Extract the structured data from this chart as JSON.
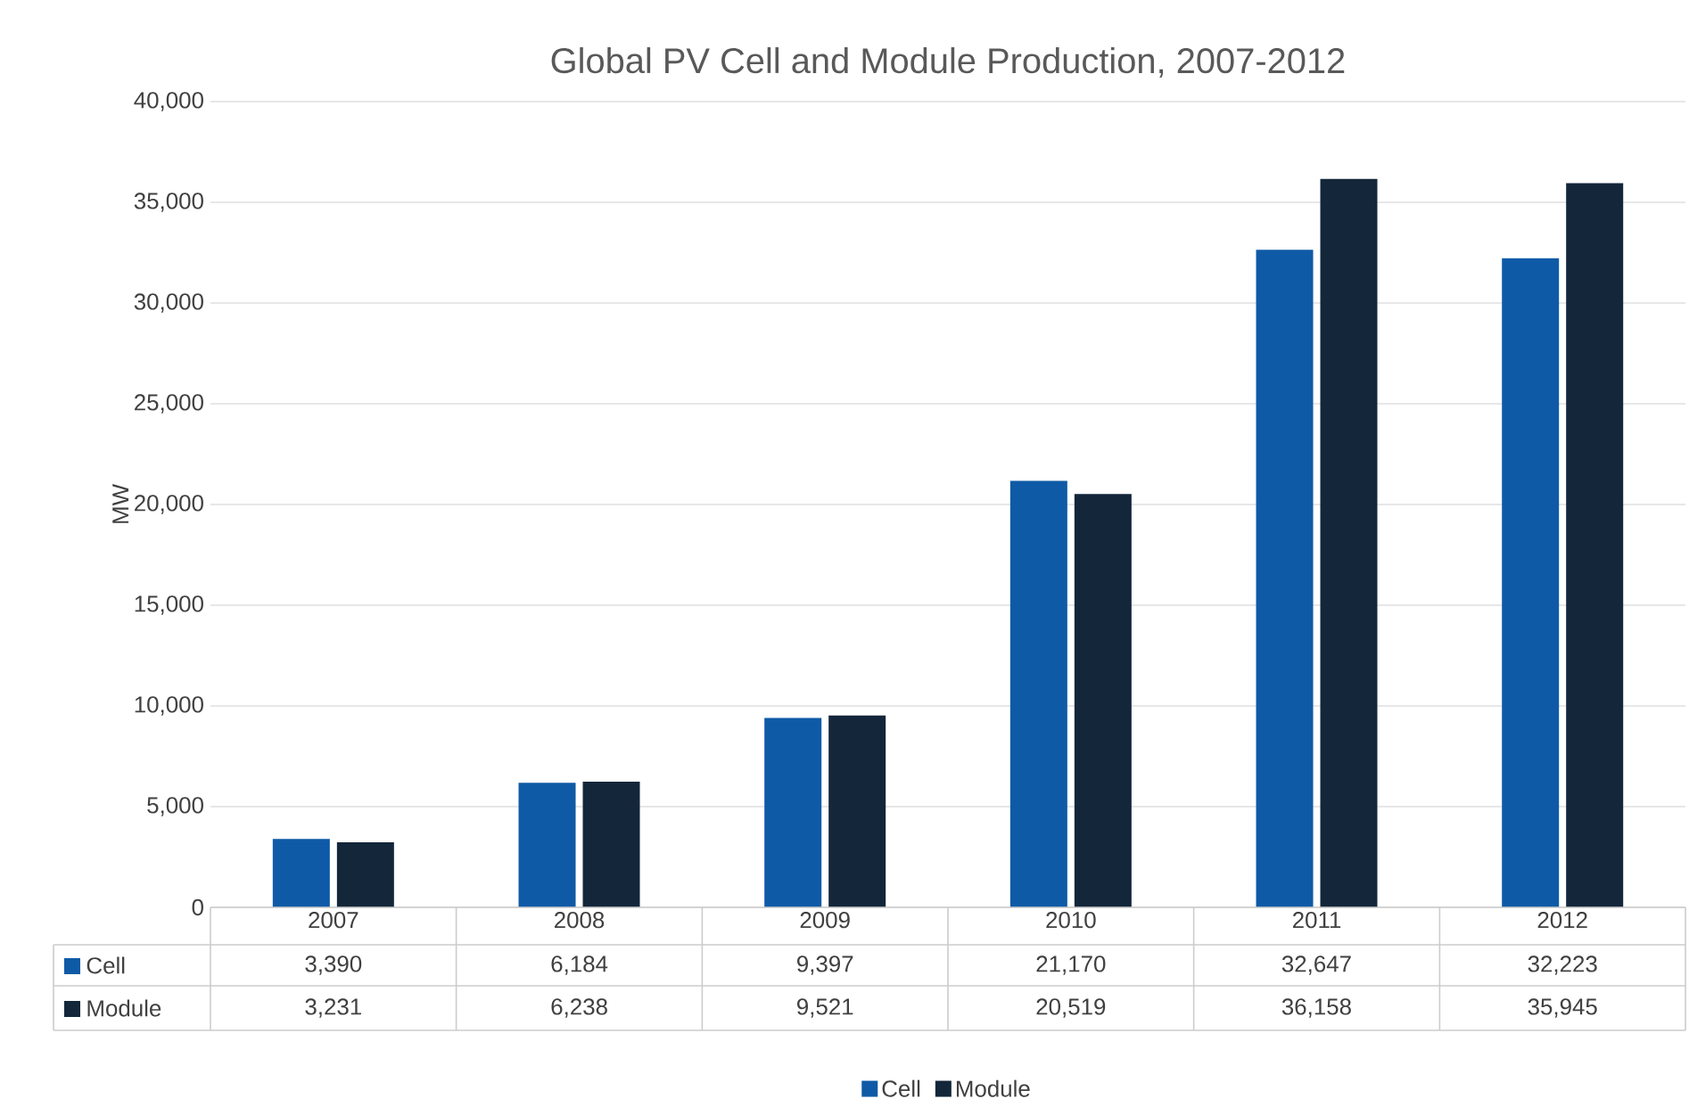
{
  "chart_data": {
    "type": "bar",
    "title": "Global PV Cell and Module Production, 2007-2012",
    "ylabel": "MW",
    "categories": [
      "2007",
      "2008",
      "2009",
      "2010",
      "2011",
      "2012"
    ],
    "series": [
      {
        "name": "Cell",
        "color": "#0f5aa6",
        "values": [
          3390,
          6184,
          9397,
          21170,
          32647,
          32223
        ],
        "value_labels": [
          "3,390",
          "6,184",
          "9,397",
          "21,170",
          "32,647",
          "32,223"
        ]
      },
      {
        "name": "Module",
        "color": "#13263a",
        "values": [
          3231,
          6238,
          9521,
          20519,
          36158,
          35945
        ],
        "value_labels": [
          "3,231",
          "6,238",
          "9,521",
          "20,519",
          "36,158",
          "35,945"
        ]
      }
    ],
    "ylim": [
      0,
      40000
    ],
    "yticks": [
      {
        "value": 0,
        "label": "0"
      },
      {
        "value": 5000,
        "label": "5,000"
      },
      {
        "value": 10000,
        "label": "10,000"
      },
      {
        "value": 15000,
        "label": "15,000"
      },
      {
        "value": 20000,
        "label": "20,000"
      },
      {
        "value": 25000,
        "label": "25,000"
      },
      {
        "value": 30000,
        "label": "30,000"
      },
      {
        "value": 35000,
        "label": "35,000"
      },
      {
        "value": 40000,
        "label": "40,000"
      }
    ],
    "grid": "y",
    "legend": "bottom"
  }
}
